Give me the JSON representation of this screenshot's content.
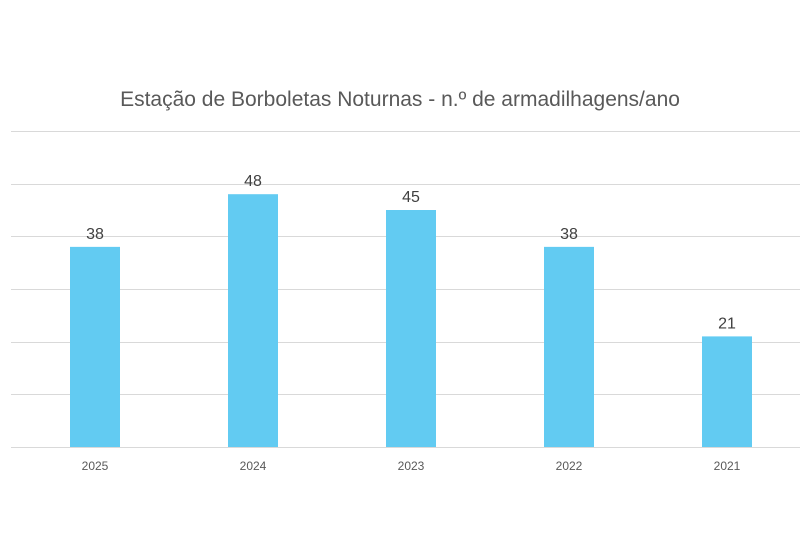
{
  "chart_data": {
    "type": "bar",
    "title": "Estação de Borboletas Noturnas - n.º de armadilhagens/ano",
    "xlabel": "",
    "ylabel": "",
    "categories": [
      "2025",
      "2024",
      "2023",
      "2022",
      "2021"
    ],
    "values": [
      38,
      48,
      45,
      38,
      21
    ],
    "data_labels": [
      "38",
      "48",
      "45",
      "38",
      "21"
    ],
    "ylim": [
      0,
      60
    ],
    "yticks": [
      0,
      10,
      20,
      30,
      40,
      50,
      60
    ],
    "grid": true,
    "legend": "none",
    "colors": {
      "bar": "#62cbf2",
      "grid": "#d9d9d9",
      "text": "#595959"
    }
  }
}
